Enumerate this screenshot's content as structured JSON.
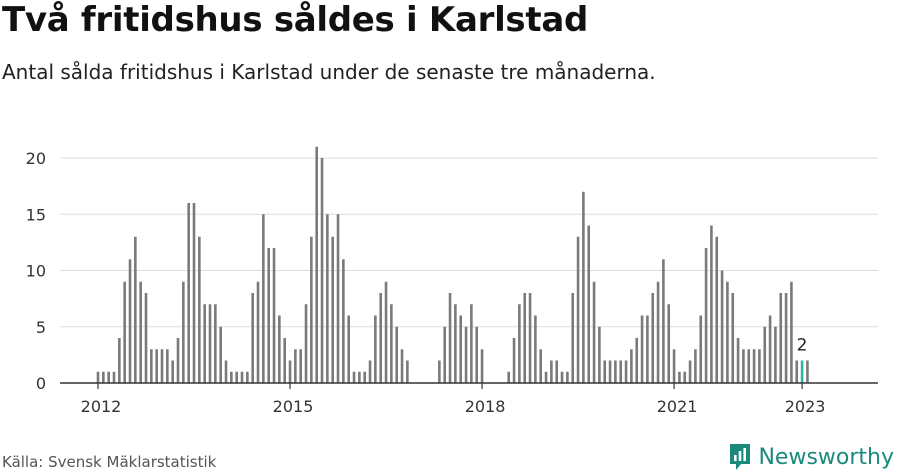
{
  "header": {
    "title": "Två fritidshus såldes i Karlstad",
    "subtitle": "Antal sålda fritidshus i Karlstad under de senaste tre månaderna."
  },
  "footer": {
    "source": "Källa: Svensk Mäklarstatistik",
    "brand": "Newsworthy",
    "brand_icon": "newsworthy-logo-icon"
  },
  "colors": {
    "bar": "#7a7a7a",
    "highlight": "#2bb3a5",
    "grid": "#dddddd",
    "axis": "#333333",
    "brand": "#1b8a7c"
  },
  "chart_data": {
    "type": "bar",
    "x_start": "2012-01",
    "x_end": "2023-01",
    "xlabel": "",
    "ylabel": "",
    "ylim": [
      0,
      21
    ],
    "yticks": [
      0,
      5,
      10,
      15,
      20
    ],
    "ytick_labels": [
      "0",
      "5",
      "10",
      "15",
      "20"
    ],
    "xtick_labels": [
      {
        "label": "2012",
        "month": "2012-01"
      },
      {
        "label": "2015",
        "month": "2015-01"
      },
      {
        "label": "2018",
        "month": "2018-01"
      },
      {
        "label": "2021",
        "month": "2021-01"
      },
      {
        "label": "2023",
        "month": "2023-01"
      }
    ],
    "grid": true,
    "values": [
      1,
      1,
      1,
      1,
      4,
      9,
      11,
      13,
      9,
      8,
      3,
      3,
      3,
      3,
      2,
      4,
      9,
      16,
      16,
      13,
      7,
      7,
      7,
      5,
      2,
      1,
      1,
      1,
      1,
      8,
      9,
      15,
      12,
      12,
      6,
      4,
      2,
      3,
      3,
      7,
      13,
      21,
      20,
      15,
      13,
      15,
      11,
      6,
      1,
      1,
      1,
      2,
      6,
      8,
      9,
      7,
      5,
      3,
      2,
      0,
      0,
      0,
      0,
      0,
      2,
      5,
      8,
      7,
      6,
      5,
      7,
      5,
      3,
      0,
      0,
      0,
      0,
      1,
      4,
      7,
      8,
      8,
      6,
      3,
      1,
      2,
      2,
      1,
      1,
      8,
      13,
      17,
      14,
      9,
      5,
      2,
      2,
      2,
      2,
      2,
      3,
      4,
      6,
      6,
      8,
      9,
      11,
      7,
      3,
      1,
      1,
      2,
      3,
      6,
      12,
      14,
      13,
      10,
      9,
      8,
      4,
      3,
      3,
      3,
      3,
      5,
      6,
      5,
      8,
      8,
      9,
      2,
      2,
      2
    ],
    "highlight": {
      "month": "2023-01",
      "value": 2,
      "label": "2"
    }
  }
}
